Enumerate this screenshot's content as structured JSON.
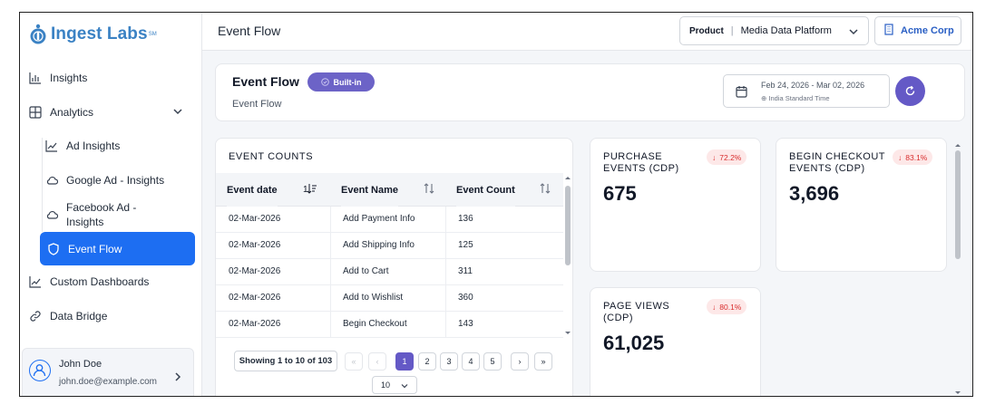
{
  "brand": {
    "name": "Ingest Labs",
    "tm": "SM"
  },
  "sidebar": {
    "items": [
      {
        "label": "Insights",
        "icon": "bar-chart-icon"
      },
      {
        "label": "Analytics",
        "icon": "grid-icon"
      },
      {
        "label": "Ad Insights",
        "icon": "line-chart-icon"
      },
      {
        "label": "Google Ad - Insights",
        "icon": "cloud-icon"
      },
      {
        "label": "Facebook Ad - Insights",
        "icon": "cloud-icon"
      },
      {
        "label": "Event Flow",
        "icon": "shield-icon"
      },
      {
        "label": "Custom Dashboards",
        "icon": "line-chart-icon"
      },
      {
        "label": "Data Bridge",
        "icon": "link-icon"
      }
    ],
    "user": {
      "name": "John Doe",
      "email": "john.doe@example.com"
    }
  },
  "topbar": {
    "title": "Event Flow",
    "product_label": "Product",
    "product_value": "Media Data Platform",
    "org": "Acme Corp"
  },
  "header": {
    "title": "Event Flow",
    "badge": "Built-in",
    "subtitle": "Event Flow",
    "date_range": "Feb 24, 2026 - Mar 02, 2026",
    "timezone": "India Standard Time"
  },
  "event_counts": {
    "title": "EVENT COUNTS",
    "columns": [
      "Event date",
      "Event Name",
      "Event Count"
    ],
    "rows": [
      [
        "02-Mar-2026",
        "Add Payment Info",
        "136"
      ],
      [
        "02-Mar-2026",
        "Add Shipping Info",
        "125"
      ],
      [
        "02-Mar-2026",
        "Add to Cart",
        "311"
      ],
      [
        "02-Mar-2026",
        "Add to Wishlist",
        "360"
      ],
      [
        "02-Mar-2026",
        "Begin Checkout",
        "143"
      ]
    ],
    "pager": {
      "info": "Showing 1 to 10 of 103",
      "pages": [
        "1",
        "2",
        "3",
        "4",
        "5"
      ],
      "current": "1",
      "page_size": "10"
    }
  },
  "metrics": [
    {
      "label": "PURCHASE EVENTS (CDP)",
      "value": "675",
      "change": "72.2%"
    },
    {
      "label": "BEGIN CHECKOUT EVENTS (CDP)",
      "value": "3,696",
      "change": "83.1%"
    },
    {
      "label": "PAGE VIEWS (CDP)",
      "value": "61,025",
      "change": "80.1%"
    }
  ],
  "colors": {
    "primary": "#1d6ef2",
    "accent": "#6459c6",
    "negative": "#d92d2d"
  }
}
